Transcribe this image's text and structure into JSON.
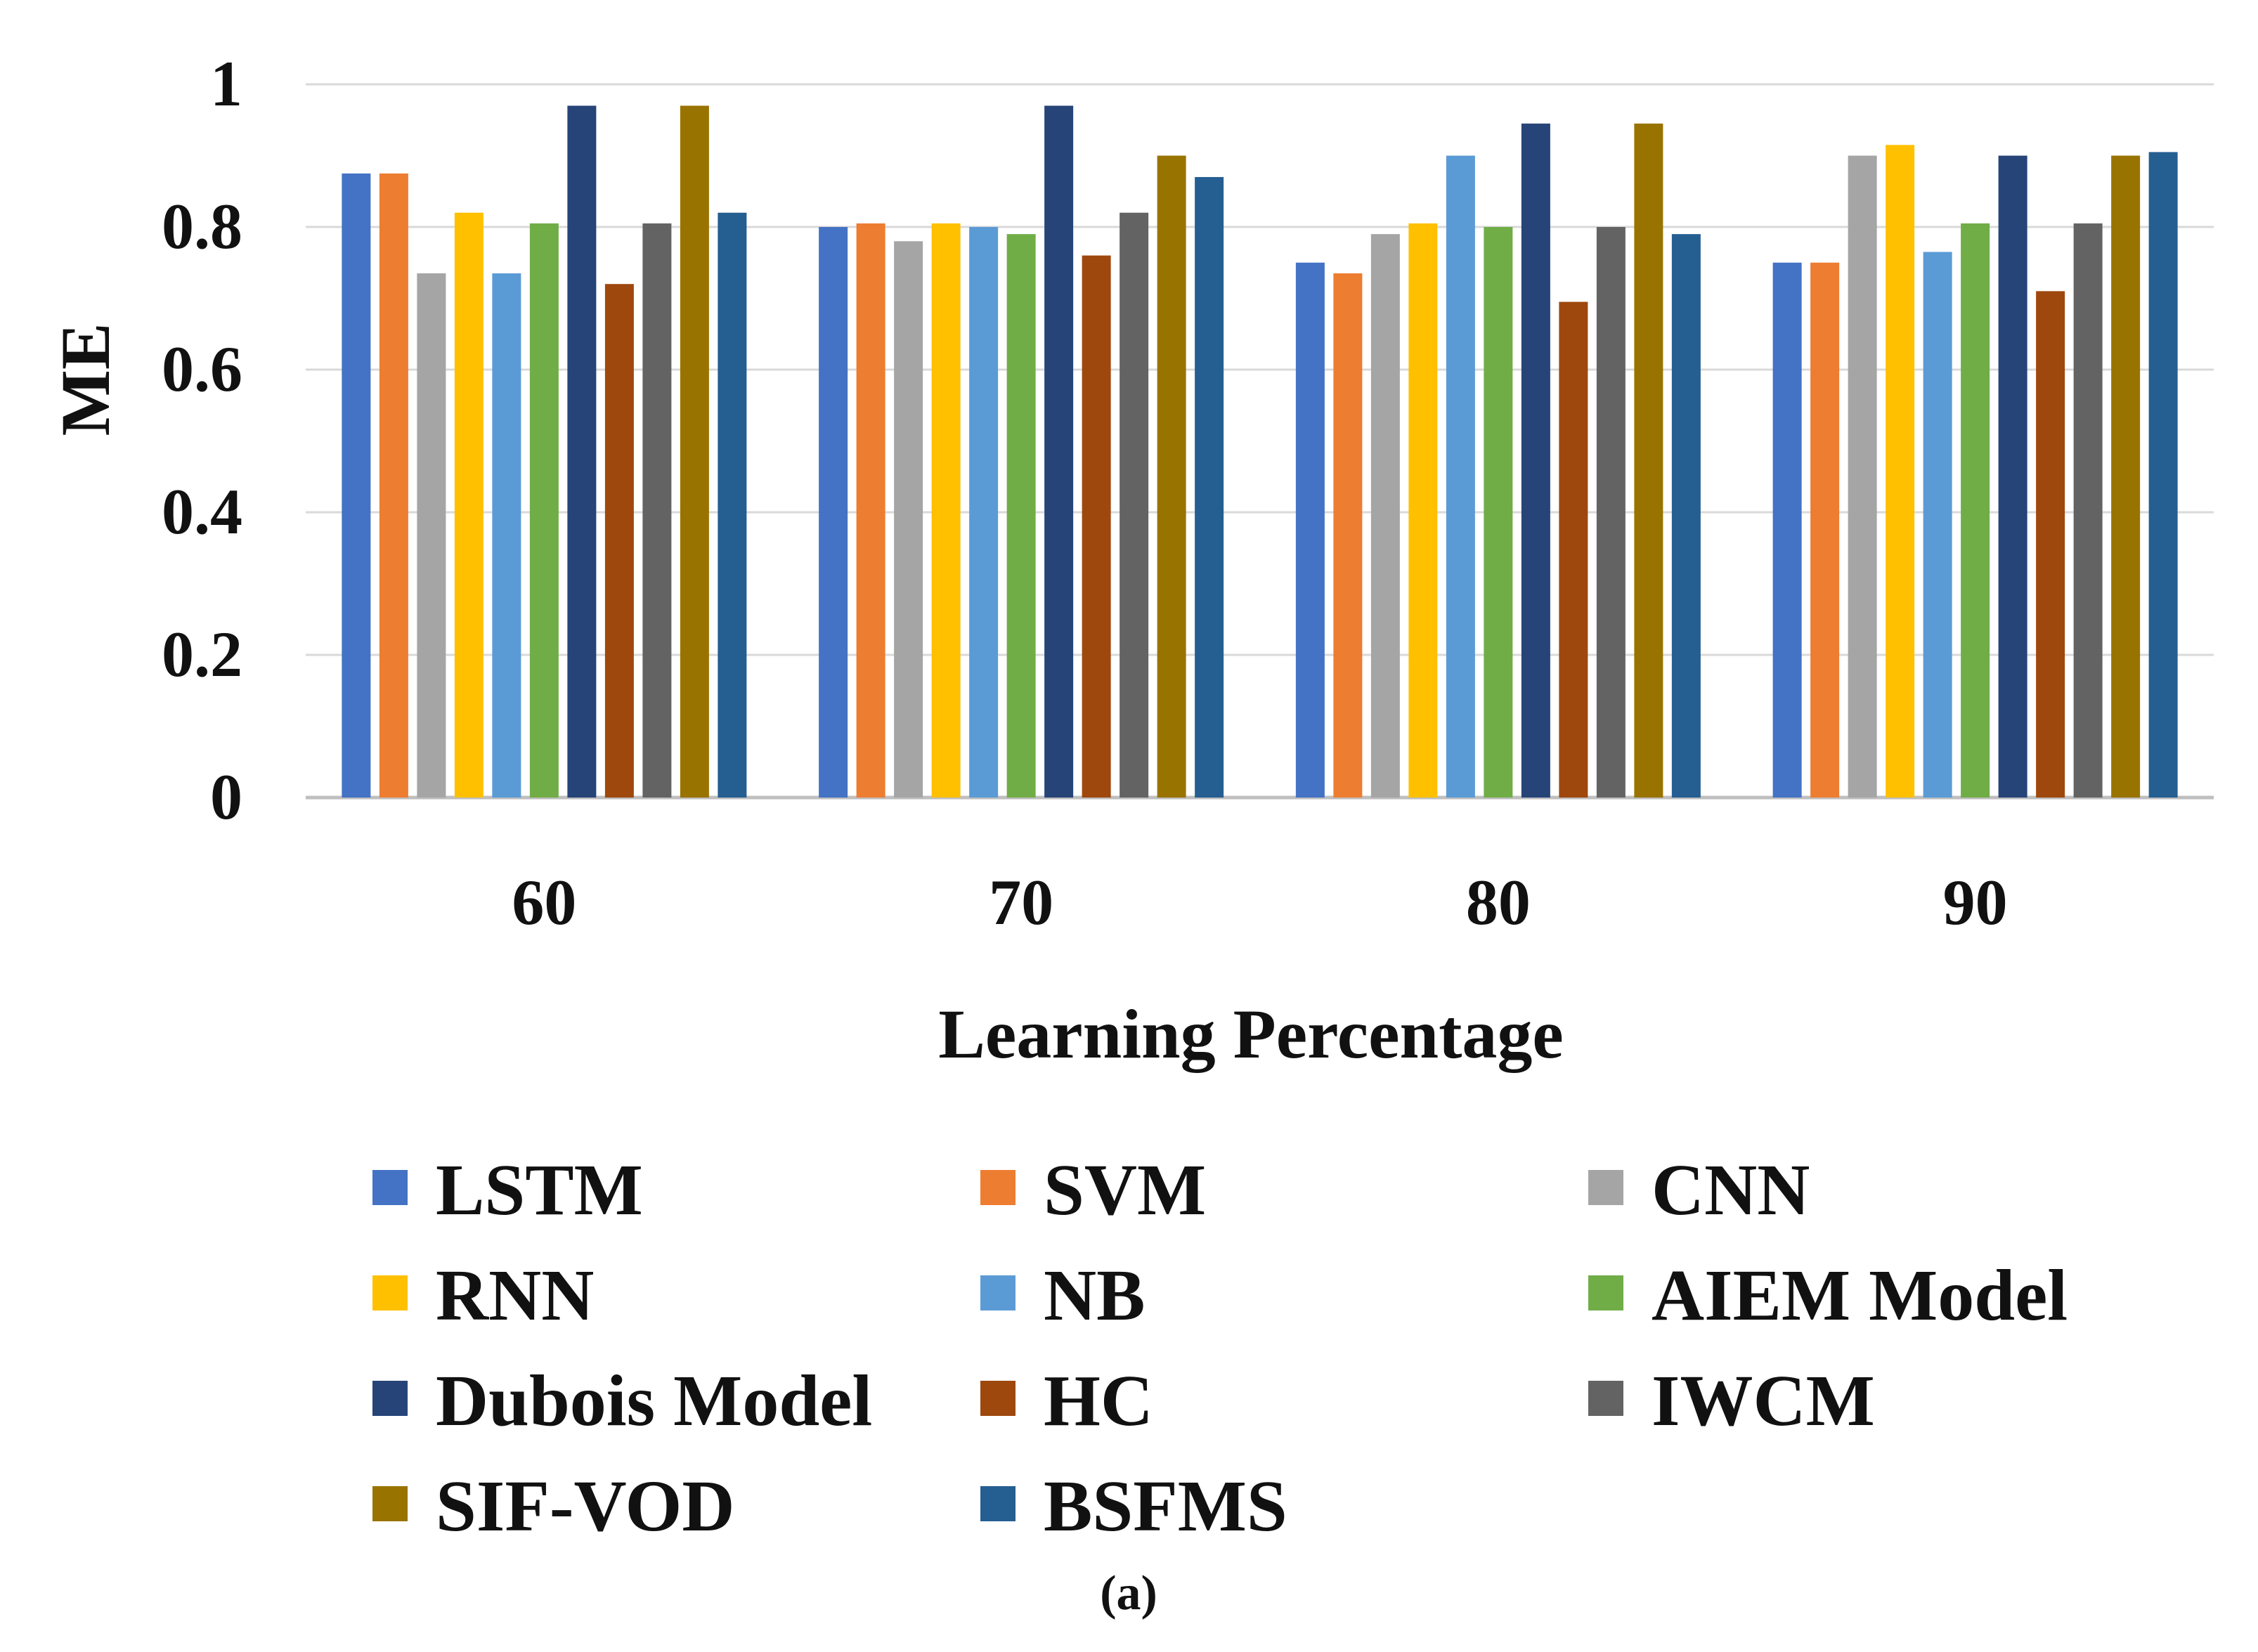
{
  "chart_data": {
    "type": "bar",
    "title": "",
    "xlabel": "Learning Percentage",
    "ylabel": "ME",
    "ylim": [
      0,
      1
    ],
    "yticks": [
      0,
      0.2,
      0.4,
      0.6,
      0.8,
      1
    ],
    "ytick_labels": [
      "0",
      "0.2",
      "0.4",
      "0.6",
      "0.8",
      "1"
    ],
    "grid": true,
    "legend_position": "bottom",
    "categories": [
      "60",
      "70",
      "80",
      "90"
    ],
    "series": [
      {
        "name": "LSTM",
        "color": "#4472C4",
        "values": [
          0.875,
          0.8,
          0.75,
          0.75
        ]
      },
      {
        "name": "SVM",
        "color": "#ED7D31",
        "values": [
          0.875,
          0.805,
          0.735,
          0.75
        ]
      },
      {
        "name": "CNN",
        "color": "#A5A5A5",
        "values": [
          0.735,
          0.78,
          0.79,
          0.9
        ]
      },
      {
        "name": "RNN",
        "color": "#FFC000",
        "values": [
          0.82,
          0.805,
          0.805,
          0.915
        ]
      },
      {
        "name": "NB",
        "color": "#5B9BD5",
        "values": [
          0.735,
          0.8,
          0.9,
          0.765
        ]
      },
      {
        "name": "AIEM Model",
        "color": "#70AD47",
        "values": [
          0.805,
          0.79,
          0.8,
          0.805
        ]
      },
      {
        "name": "Dubois Model",
        "color": "#264478",
        "values": [
          0.97,
          0.97,
          0.945,
          0.9
        ]
      },
      {
        "name": "HC",
        "color": "#9E480E",
        "values": [
          0.72,
          0.76,
          0.695,
          0.71
        ]
      },
      {
        "name": "IWCM",
        "color": "#636363",
        "values": [
          0.805,
          0.82,
          0.8,
          0.805
        ]
      },
      {
        "name": "SIF-VOD",
        "color": "#997300",
        "values": [
          0.97,
          0.9,
          0.945,
          0.9
        ]
      },
      {
        "name": "BSFMS",
        "color": "#255E91",
        "values": [
          0.82,
          0.87,
          0.79,
          0.905
        ]
      }
    ]
  },
  "caption": {
    "open": "(",
    "letter": "a",
    "close": ")"
  }
}
